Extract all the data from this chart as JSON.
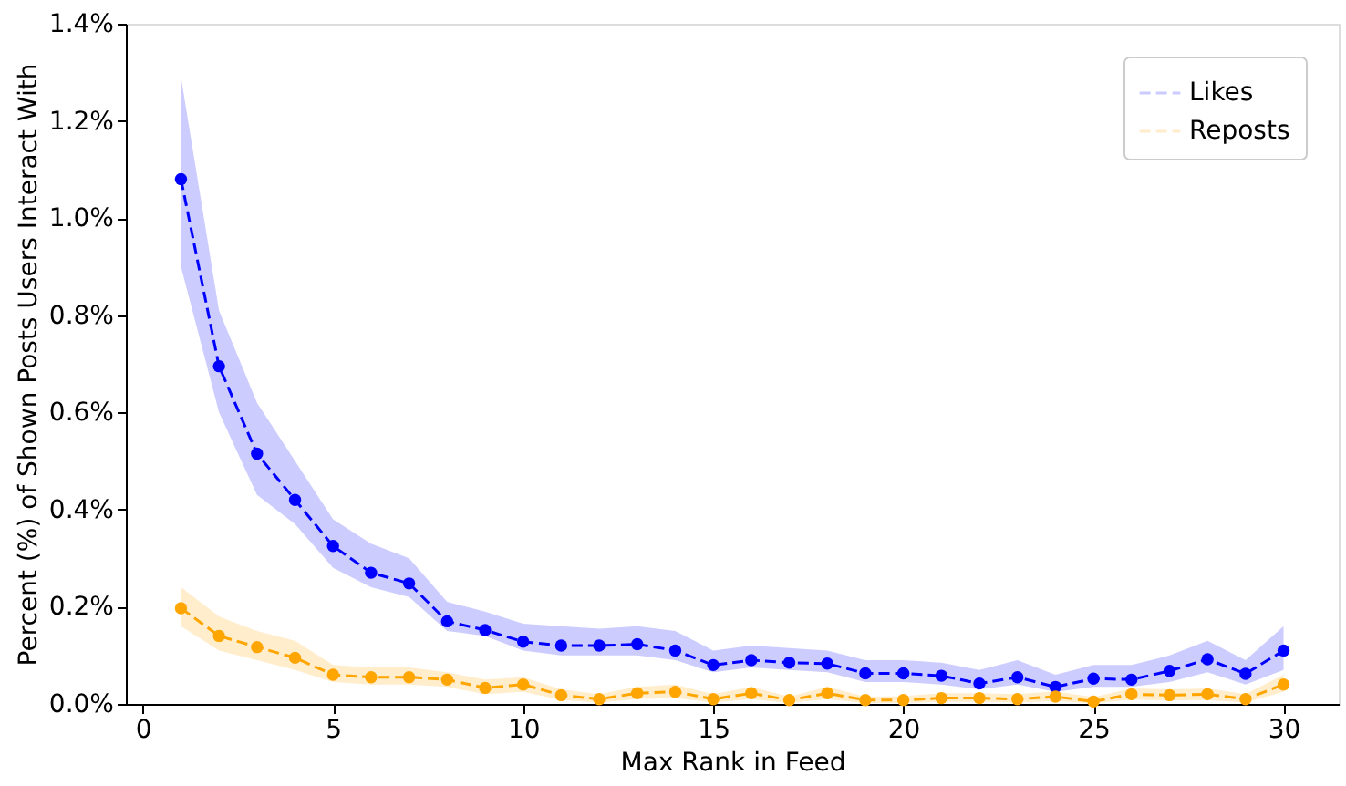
{
  "chart_data": {
    "type": "line",
    "xlabel": "Max Rank in Feed",
    "ylabel": "Percent (%) of Shown Posts Users Interact With",
    "x": [
      1,
      2,
      3,
      4,
      5,
      6,
      7,
      8,
      9,
      10,
      11,
      12,
      13,
      14,
      15,
      16,
      17,
      18,
      19,
      20,
      21,
      22,
      23,
      24,
      25,
      26,
      27,
      28,
      29,
      30
    ],
    "series": [
      {
        "name": "Likes",
        "color": "#0000ff",
        "values": [
          1.08,
          0.695,
          0.515,
          0.42,
          0.325,
          0.27,
          0.248,
          0.17,
          0.152,
          0.128,
          0.12,
          0.12,
          0.123,
          0.11,
          0.08,
          0.09,
          0.085,
          0.083,
          0.063,
          0.063,
          0.058,
          0.042,
          0.055,
          0.035,
          0.052,
          0.05,
          0.068,
          0.092,
          0.062,
          0.11
        ],
        "lower": [
          0.9,
          0.6,
          0.43,
          0.37,
          0.28,
          0.24,
          0.22,
          0.15,
          0.14,
          0.11,
          0.1,
          0.1,
          0.1,
          0.09,
          0.065,
          0.075,
          0.07,
          0.065,
          0.045,
          0.045,
          0.04,
          0.03,
          0.04,
          0.025,
          0.035,
          0.035,
          0.045,
          0.065,
          0.04,
          0.07
        ],
        "upper": [
          1.29,
          0.81,
          0.62,
          0.5,
          0.38,
          0.33,
          0.3,
          0.21,
          0.19,
          0.165,
          0.16,
          0.155,
          0.16,
          0.15,
          0.11,
          0.12,
          0.115,
          0.11,
          0.09,
          0.09,
          0.085,
          0.07,
          0.09,
          0.06,
          0.08,
          0.08,
          0.1,
          0.13,
          0.09,
          0.16
        ]
      },
      {
        "name": "Reposts",
        "color": "#ffa500",
        "values": [
          0.197,
          0.14,
          0.117,
          0.095,
          0.06,
          0.055,
          0.055,
          0.05,
          0.033,
          0.04,
          0.018,
          0.01,
          0.022,
          0.025,
          0.01,
          0.022,
          0.008,
          0.022,
          0.008,
          0.008,
          0.012,
          0.012,
          0.01,
          0.015,
          0.005,
          0.02,
          0.018,
          0.02,
          0.01,
          0.04
        ],
        "lower": [
          0.16,
          0.11,
          0.09,
          0.07,
          0.045,
          0.04,
          0.04,
          0.035,
          0.02,
          0.025,
          0.008,
          0.003,
          0.01,
          0.012,
          0.003,
          0.01,
          0.002,
          0.01,
          0.002,
          0.002,
          0.004,
          0.004,
          0.003,
          0.006,
          0.001,
          0.009,
          0.007,
          0.008,
          0.003,
          0.025
        ],
        "upper": [
          0.24,
          0.18,
          0.15,
          0.13,
          0.08,
          0.075,
          0.075,
          0.065,
          0.05,
          0.055,
          0.03,
          0.02,
          0.035,
          0.04,
          0.02,
          0.035,
          0.015,
          0.035,
          0.015,
          0.016,
          0.022,
          0.022,
          0.02,
          0.026,
          0.014,
          0.032,
          0.03,
          0.032,
          0.02,
          0.06
        ]
      }
    ],
    "xlim": [
      -0.45,
      31.45
    ],
    "xticks": [
      0,
      5,
      10,
      15,
      20,
      25,
      30
    ],
    "ylim": [
      0,
      1.4
    ],
    "yticks": [
      {
        "value": 0,
        "label": "0.0%"
      },
      {
        "value": 0.2,
        "label": "0.2%"
      },
      {
        "value": 0.4,
        "label": "0.4%"
      },
      {
        "value": 0.6,
        "label": "0.6%"
      },
      {
        "value": 0.8,
        "label": "0.8%"
      },
      {
        "value": 1.0,
        "label": "1.0%"
      },
      {
        "value": 1.2,
        "label": "1.2%"
      },
      {
        "value": 1.4,
        "label": "1.4%"
      }
    ],
    "grid": false,
    "legend": "top right",
    "marker": "circle",
    "line_style": "dashed"
  }
}
